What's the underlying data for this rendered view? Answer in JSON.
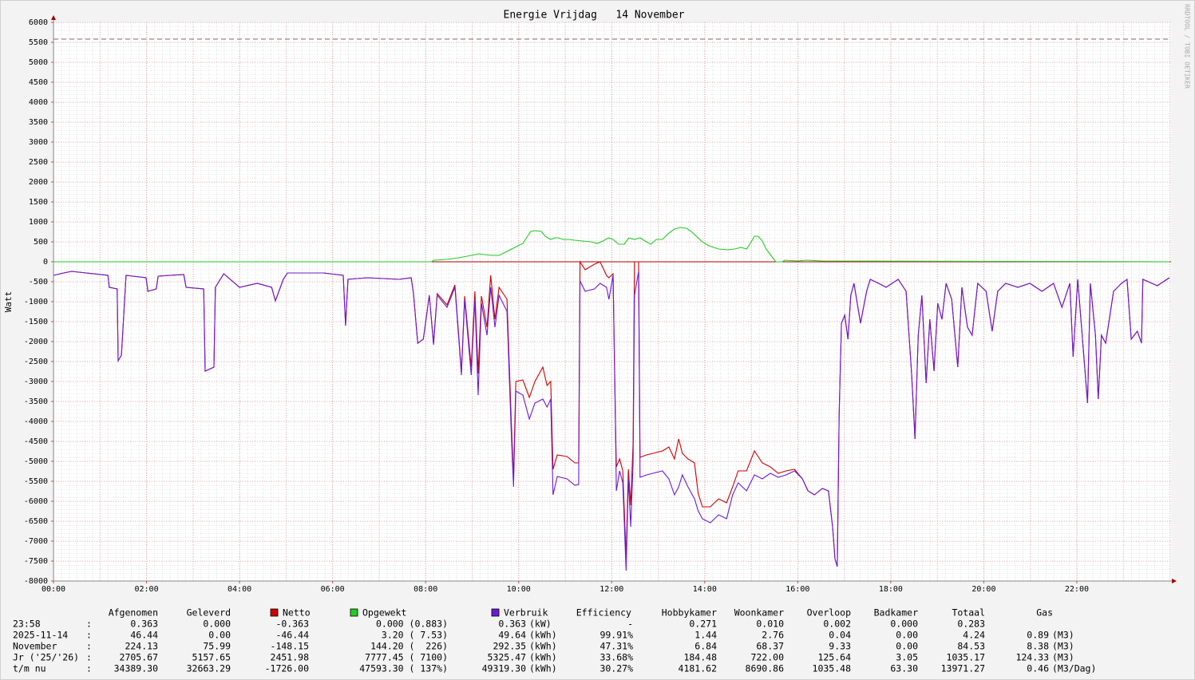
{
  "chart_data": {
    "type": "line",
    "title": "Energie Vrijdag   14 November",
    "y_label": "Watt",
    "watermark": "RRDTOOL / TOBI OETIKER",
    "xlim": [
      0,
      24
    ],
    "xticks": [
      {
        "value": 0,
        "label": "00:00"
      },
      {
        "value": 2,
        "label": "02:00"
      },
      {
        "value": 4,
        "label": "04:00"
      },
      {
        "value": 6,
        "label": "06:00"
      },
      {
        "value": 8,
        "label": "08:00"
      },
      {
        "value": 10,
        "label": "10:00"
      },
      {
        "value": 12,
        "label": "12:00"
      },
      {
        "value": 14,
        "label": "14:00"
      },
      {
        "value": 16,
        "label": "16:00"
      },
      {
        "value": 18,
        "label": "18:00"
      },
      {
        "value": 20,
        "label": "20:00"
      },
      {
        "value": 22,
        "label": "22:00"
      }
    ],
    "ylim": [
      -8000,
      6000
    ],
    "yticks": [
      -8000,
      -7500,
      -7000,
      -6500,
      -6000,
      -5500,
      -5000,
      -4500,
      -4000,
      -3500,
      -3000,
      -2500,
      -2000,
      -1500,
      -1000,
      -500,
      0,
      500,
      1000,
      1500,
      2000,
      2500,
      3000,
      3500,
      4000,
      4500,
      5000,
      5500,
      6000
    ],
    "grid": true,
    "reference_line": {
      "value": 5580,
      "color": "#806868"
    },
    "series": [
      {
        "name": "Netto",
        "color": "#cc0000",
        "x": [
          0,
          0.22,
          0.39,
          1.17,
          1.2,
          1.37,
          1.39,
          1.46,
          1.51,
          1.56,
          1.99,
          2.03,
          2.21,
          2.25,
          2.8,
          2.85,
          3.23,
          3.26,
          3.45,
          3.48,
          3.66,
          4.0,
          4.38,
          4.69,
          4.77,
          4.94,
          5.03,
          5.8,
          6.23,
          6.28,
          6.33,
          6.74,
          7.43,
          7.69,
          7.74,
          7.83,
          7.95,
          8.08,
          8.17,
          8.25,
          8.46,
          8.63,
          8.72,
          8.77,
          8.84,
          8.98,
          9.06,
          9.13,
          9.2,
          9.32,
          9.4,
          9.49,
          9.58,
          9.75,
          9.84,
          9.89,
          9.94,
          10.09,
          10.23,
          10.35,
          10.52,
          10.61,
          10.69,
          10.74,
          10.83,
          11.04,
          11.21,
          11.29,
          11.32,
          11.43,
          11.63,
          11.75,
          11.89,
          11.94,
          12.03,
          12.07,
          12.1,
          12.17,
          12.24,
          12.31,
          12.36,
          12.41,
          12.46,
          12.49,
          12.58,
          12.61,
          12.75,
          13.09,
          13.23,
          13.35,
          13.44,
          13.52,
          13.64,
          13.78,
          13.86,
          13.95,
          14.12,
          14.3,
          14.47,
          14.6,
          14.72,
          14.9,
          15.07,
          15.24,
          15.41,
          15.58,
          15.75,
          15.93,
          16.1,
          16.22,
          16.36,
          16.53,
          16.66,
          16.75,
          16.8,
          16.85,
          16.89,
          16.94,
          17.01,
          17.08,
          17.14,
          17.21,
          17.35,
          17.48,
          17.56,
          17.74,
          17.9,
          18.16,
          18.33,
          18.45,
          18.52,
          18.59,
          18.67,
          18.76,
          18.84,
          18.93,
          19.01,
          19.1,
          19.19,
          19.31,
          19.44,
          19.53,
          19.65,
          19.75,
          19.87,
          20.05,
          20.18,
          20.3,
          20.47,
          20.73,
          20.99,
          21.25,
          21.5,
          21.68,
          21.85,
          21.92,
          22.02,
          22.23,
          22.29,
          22.4,
          22.46,
          22.53,
          22.62,
          22.79,
          22.96,
          23.08,
          23.17,
          23.3,
          23.39,
          23.42,
          23.73,
          23.99
        ],
        "values": [
          -340,
          -280,
          -240,
          -340,
          -640,
          -680,
          -2480,
          -2340,
          -1340,
          -340,
          -400,
          -740,
          -680,
          -360,
          -320,
          -640,
          -680,
          -2740,
          -2640,
          -640,
          -300,
          -640,
          -540,
          -640,
          -980,
          -440,
          -280,
          -280,
          -340,
          -1600,
          -440,
          -400,
          -440,
          -400,
          -800,
          -2040,
          -1940,
          -840,
          -2040,
          -800,
          -1080,
          -580,
          -1960,
          -2760,
          -860,
          -2640,
          -740,
          -2800,
          -860,
          -1640,
          -340,
          -1440,
          -640,
          -940,
          -3940,
          -5400,
          -3000,
          -2960,
          -3400,
          -3000,
          -2640,
          -3100,
          -3000,
          -5200,
          -4840,
          -4880,
          -5040,
          -5040,
          0,
          -200,
          -60,
          0,
          -340,
          -400,
          -300,
          -3240,
          -5140,
          -4940,
          -5240,
          -7400,
          -5200,
          -6100,
          -4540,
          0,
          0,
          -4900,
          -4840,
          -4740,
          -4640,
          -4940,
          -4440,
          -4800,
          -4940,
          -5040,
          -5800,
          -6140,
          -6140,
          -5940,
          -6040,
          -5640,
          -5240,
          -5240,
          -4740,
          -5040,
          -5140,
          -5300,
          -5240,
          -5200,
          -5440,
          -5740,
          -5840,
          -5680,
          -5740,
          -6640,
          -7440,
          -7640,
          -3840,
          -1540,
          -1340,
          -1940,
          -840,
          -540,
          -1540,
          -740,
          -440,
          -540,
          -640,
          -440,
          -740,
          -2840,
          -4440,
          -1840,
          -840,
          -3040,
          -1440,
          -2740,
          -1040,
          -1440,
          -540,
          -940,
          -2640,
          -640,
          -1640,
          -1840,
          -540,
          -740,
          -1740,
          -740,
          -540,
          -640,
          -540,
          -740,
          -540,
          -1140,
          -540,
          -2380,
          -440,
          -3540,
          -540,
          -1840,
          -3440,
          -1840,
          -2040,
          -740,
          -540,
          -440,
          -1940,
          -1740,
          -2040,
          -440,
          -600,
          -400
        ]
      },
      {
        "name": "Opgewekt",
        "color": "#22cc22",
        "x": [
          0,
          8.13,
          8.17,
          8.46,
          8.72,
          8.98,
          9.15,
          9.4,
          9.58,
          9.75,
          9.92,
          10.09,
          10.17,
          10.26,
          10.35,
          10.49,
          10.57,
          10.69,
          10.78,
          10.86,
          10.95,
          11.07,
          11.21,
          11.38,
          11.55,
          11.69,
          11.81,
          11.93,
          12.03,
          12.15,
          12.27,
          12.37,
          12.49,
          12.61,
          12.72,
          12.84,
          12.96,
          13.09,
          13.23,
          13.35,
          13.47,
          13.61,
          13.71,
          13.82,
          13.95,
          14.09,
          14.3,
          14.5,
          14.64,
          14.78,
          14.9,
          14.98,
          15.07,
          15.15,
          15.24,
          15.32,
          15.45,
          15.53,
          15.67,
          15.72,
          16.01,
          16.18,
          16.53,
          24
        ],
        "values": [
          0,
          0,
          40,
          60,
          100,
          160,
          200,
          160,
          160,
          260,
          360,
          460,
          600,
          760,
          780,
          760,
          640,
          560,
          600,
          600,
          560,
          560,
          540,
          520,
          500,
          460,
          520,
          600,
          560,
          440,
          440,
          600,
          560,
          600,
          520,
          440,
          560,
          560,
          720,
          820,
          860,
          840,
          760,
          640,
          500,
          400,
          320,
          300,
          320,
          360,
          320,
          460,
          640,
          640,
          520,
          320,
          120,
          0,
          0,
          40,
          20,
          40,
          20,
          0
        ]
      },
      {
        "name": "Verbruik",
        "color": "#6a1bd6",
        "x": [
          0,
          0.22,
          0.39,
          1.17,
          1.2,
          1.37,
          1.39,
          1.46,
          1.51,
          1.56,
          1.99,
          2.03,
          2.21,
          2.25,
          2.8,
          2.85,
          3.23,
          3.26,
          3.45,
          3.48,
          3.66,
          4.0,
          4.38,
          4.69,
          4.77,
          4.94,
          5.03,
          5.8,
          6.23,
          6.28,
          6.33,
          6.74,
          7.43,
          7.69,
          7.74,
          7.83,
          7.95,
          8.08,
          8.17,
          8.25,
          8.46,
          8.63,
          8.72,
          8.77,
          8.84,
          8.98,
          9.06,
          9.13,
          9.2,
          9.32,
          9.4,
          9.49,
          9.58,
          9.75,
          9.84,
          9.89,
          9.94,
          10.09,
          10.23,
          10.35,
          10.52,
          10.61,
          10.69,
          10.74,
          10.83,
          11.04,
          11.21,
          11.29,
          11.32,
          11.43,
          11.63,
          11.75,
          11.89,
          11.94,
          12.03,
          12.07,
          12.1,
          12.17,
          12.24,
          12.31,
          12.36,
          12.41,
          12.46,
          12.49,
          12.58,
          12.61,
          12.75,
          13.09,
          13.23,
          13.35,
          13.44,
          13.52,
          13.64,
          13.78,
          13.86,
          13.95,
          14.12,
          14.3,
          14.47,
          14.6,
          14.72,
          14.9,
          15.07,
          15.24,
          15.41,
          15.58,
          15.75,
          15.93,
          16.1,
          16.22,
          16.36,
          16.53,
          16.66,
          16.75,
          16.8,
          16.85,
          16.89,
          16.94,
          17.01,
          17.08,
          17.14,
          17.21,
          17.35,
          17.48,
          17.56,
          17.74,
          17.9,
          18.16,
          18.33,
          18.45,
          18.52,
          18.59,
          18.67,
          18.76,
          18.84,
          18.93,
          19.01,
          19.1,
          19.19,
          19.31,
          19.44,
          19.53,
          19.65,
          19.75,
          19.87,
          20.05,
          20.18,
          20.3,
          20.47,
          20.73,
          20.99,
          21.25,
          21.5,
          21.68,
          21.85,
          21.92,
          22.02,
          22.23,
          22.29,
          22.4,
          22.46,
          22.53,
          22.62,
          22.79,
          22.96,
          23.08,
          23.17,
          23.3,
          23.39,
          23.42,
          23.73,
          23.99
        ],
        "values": [
          -340,
          -280,
          -240,
          -340,
          -640,
          -680,
          -2480,
          -2340,
          -1340,
          -340,
          -400,
          -740,
          -680,
          -360,
          -320,
          -640,
          -680,
          -2740,
          -2640,
          -640,
          -300,
          -640,
          -540,
          -640,
          -980,
          -440,
          -280,
          -280,
          -340,
          -1600,
          -440,
          -400,
          -440,
          -400,
          -800,
          -2040,
          -1940,
          -840,
          -2080,
          -840,
          -1140,
          -640,
          -2040,
          -2840,
          -940,
          -2840,
          -940,
          -3340,
          -1040,
          -1840,
          -640,
          -1640,
          -840,
          -1240,
          -4240,
          -5640,
          -3240,
          -3340,
          -3940,
          -3540,
          -3440,
          -3640,
          -3440,
          -5840,
          -5380,
          -5440,
          -5600,
          -5580,
          -480,
          -740,
          -680,
          -540,
          -640,
          -940,
          -340,
          -3040,
          -5740,
          -5240,
          -5540,
          -7740,
          -5440,
          -6640,
          -5040,
          -840,
          -240,
          -5400,
          -5340,
          -5240,
          -5440,
          -5840,
          -5640,
          -5340,
          -5640,
          -5940,
          -6240,
          -6440,
          -6540,
          -6340,
          -6440,
          -5840,
          -5540,
          -5740,
          -5340,
          -5440,
          -5300,
          -5400,
          -5340,
          -5240,
          -5440,
          -5740,
          -5840,
          -5680,
          -5740,
          -6640,
          -7440,
          -7640,
          -3840,
          -1540,
          -1340,
          -1940,
          -840,
          -540,
          -1540,
          -740,
          -440,
          -540,
          -640,
          -440,
          -740,
          -2840,
          -4440,
          -1840,
          -840,
          -3040,
          -1440,
          -2740,
          -1040,
          -1440,
          -540,
          -940,
          -2640,
          -640,
          -1640,
          -1840,
          -540,
          -740,
          -1740,
          -740,
          -540,
          -640,
          -540,
          -740,
          -540,
          -1140,
          -540,
          -2380,
          -440,
          -3540,
          -540,
          -1840,
          -3440,
          -1840,
          -2040,
          -740,
          -540,
          -440,
          -1940,
          -1740,
          -2040,
          -440,
          -600,
          -400
        ]
      }
    ],
    "table": {
      "columns_left": [
        "Afgenomen",
        "Geleverd"
      ],
      "columns_right": [
        "Efficiency",
        "Hobbykamer",
        "Woonkamer",
        "Overloop",
        "Badkamer",
        "Totaal",
        "Gas"
      ],
      "separator": ":",
      "rows": [
        {
          "label": "23:58",
          "values": [
            "0.363",
            "0.000",
            "-0.363",
            "0.000 (0.883)",
            "0.363",
            "-",
            "0.271",
            "0.010",
            "0.002",
            "0.000",
            "0.283"
          ],
          "unit": "(kW)"
        },
        {
          "label": "2025-11-14",
          "values": [
            "46.44",
            "0.00",
            "-46.44",
            "3.20 ( 7.53)",
            "49.64",
            "99.91%",
            "1.44",
            "2.76",
            "0.04",
            "0.00",
            "4.24",
            "0.89"
          ],
          "unit": "(kWh)",
          "gas_unit": "(M3)"
        },
        {
          "label": "November",
          "values": [
            "224.13",
            "75.99",
            "-148.15",
            "144.20 (  226)",
            "292.35",
            "47.31%",
            "6.84",
            "68.37",
            "9.33",
            "0.00",
            "84.53",
            "8.38"
          ],
          "unit": "(kWh)",
          "gas_unit": "(M3)"
        },
        {
          "label": "Jr ('25/'26)",
          "values": [
            "2705.67",
            "5157.65",
            "2451.98",
            "7777.45 ( 7100)",
            "5325.47",
            "33.68%",
            "184.48",
            "722.00",
            "125.64",
            "3.05",
            "1035.17",
            "124.33"
          ],
          "unit": "(kWh)",
          "gas_unit": "(M3)"
        },
        {
          "label": "t/m nu",
          "values": [
            "34389.30",
            "32663.29",
            "-1726.00",
            "47593.30 ( 137%)",
            "49319.30",
            "30.27%",
            "4181.62",
            "8690.86",
            "1035.48",
            "63.30",
            "13971.27",
            "0.46"
          ],
          "unit": "(kWh)",
          "gas_unit": "(M3/Dag)"
        }
      ]
    }
  }
}
